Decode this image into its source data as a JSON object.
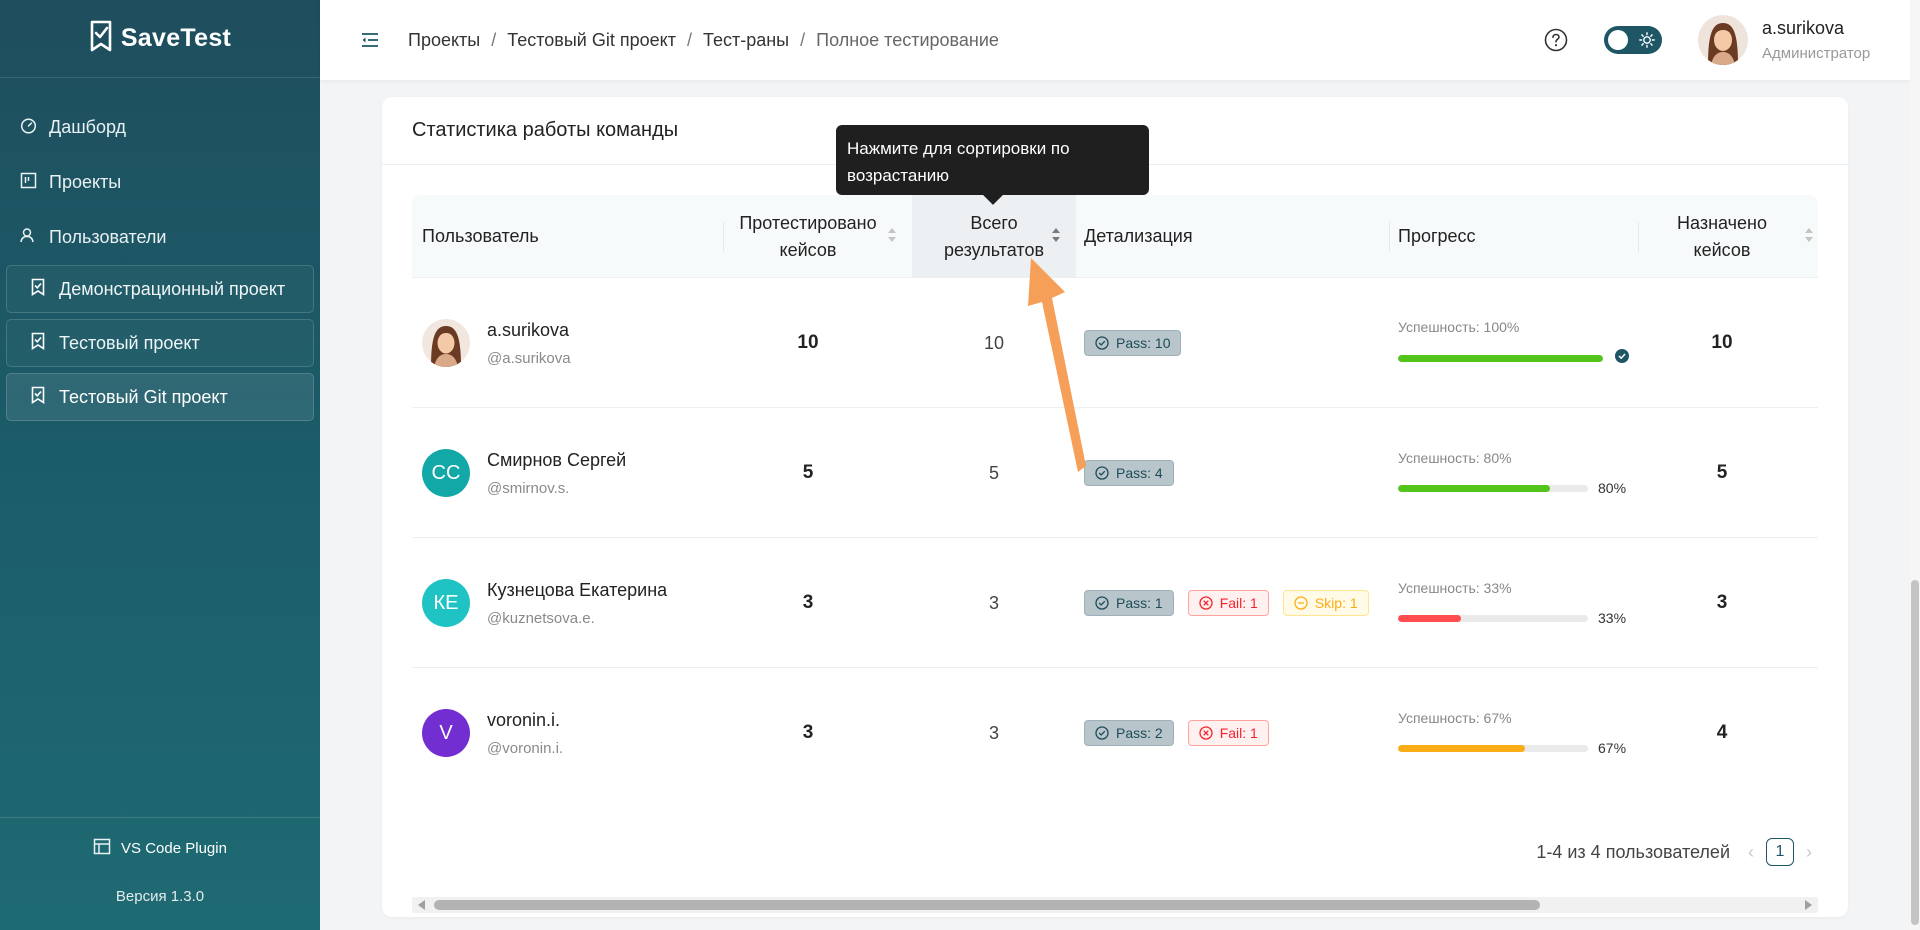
{
  "sidebar": {
    "logo": "SaveTest",
    "nav": [
      {
        "label": "Дашборд",
        "icon": "dashboard-icon"
      },
      {
        "label": "Проекты",
        "icon": "projects-icon"
      },
      {
        "label": "Пользователи",
        "icon": "users-icon"
      }
    ],
    "projects": [
      {
        "label": "Демонстрационный проект"
      },
      {
        "label": "Тестовый проект"
      },
      {
        "label": "Тестовый Git проект"
      }
    ],
    "plugin": "VS Code Plugin",
    "version": "Версия 1.3.0"
  },
  "header": {
    "breadcrumbs": [
      "Проекты",
      "Тестовый Git проект",
      "Тест-раны",
      "Полное тестирование"
    ],
    "separator": "/",
    "user": {
      "name": "a.surikova",
      "role": "Администратор"
    }
  },
  "card": {
    "title": "Статистика работы команды",
    "tooltip": "Нажмите для сортировки по возрастанию",
    "columns": {
      "user": "Пользователь",
      "tested_1": "Протестировано",
      "tested_2": "кейсов",
      "total_1": "Всего",
      "total_2": "результатов",
      "details": "Детализация",
      "progress": "Прогресс",
      "assigned_1": "Назначено",
      "assigned_2": "кейсов"
    },
    "rows": [
      {
        "name": "a.surikova",
        "login": "@a.surikova",
        "initials": "",
        "tested": "10",
        "total": "10",
        "tags": {
          "pass": "Pass: 10"
        },
        "progress_label": "Успешность: 100%",
        "progress": 100,
        "pct": "",
        "assigned": "10"
      },
      {
        "name": "Смирнов Сергей",
        "login": "@smirnov.s.",
        "initials": "СС",
        "color": "#13a8a8",
        "tested": "5",
        "total": "5",
        "tags": {
          "pass": "Pass: 4"
        },
        "progress_label": "Успешность: 80%",
        "progress": 80,
        "pct": "80%",
        "assigned": "5"
      },
      {
        "name": "Кузнецова Екатерина",
        "login": "@kuznetsova.e.",
        "initials": "КЕ",
        "color": "#1fc3c3",
        "tested": "3",
        "total": "3",
        "tags": {
          "pass": "Pass: 1",
          "fail": "Fail: 1",
          "skip": "Skip: 1"
        },
        "progress_label": "Успешность: 33%",
        "progress": 33,
        "pct": "33%",
        "assigned": "3"
      },
      {
        "name": "voronin.i.",
        "login": "@voronin.i.",
        "initials": "V",
        "color": "#722ed1",
        "tested": "3",
        "total": "3",
        "tags": {
          "pass": "Pass: 2",
          "fail": "Fail: 1"
        },
        "progress_label": "Успешность: 67%",
        "progress": 67,
        "pct": "67%",
        "assigned": "4"
      }
    ],
    "pagination": {
      "summary": "1-4 из 4 пользователей",
      "current": "1"
    }
  },
  "colors": {
    "accent": "#1f5666",
    "green": "#52c41a",
    "red": "#ff4d4f",
    "orange": "#faad14"
  }
}
